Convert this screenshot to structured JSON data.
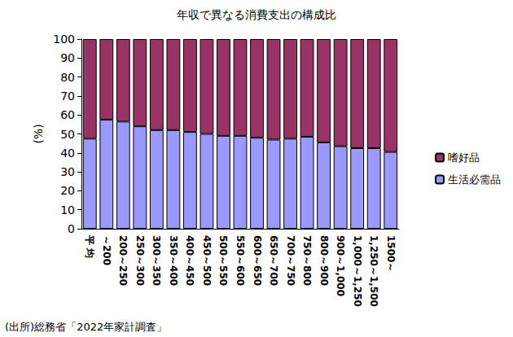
{
  "chart_data": {
    "type": "bar",
    "title": "年収で異なる消費支出の構成比",
    "y_label": "(%)",
    "annotations": [
      "(出所)総務省「2022年家計調査」"
    ],
    "categories": [
      "平 均",
      "～200",
      "200～250",
      "250～300",
      "300～350",
      "350～400",
      "400～450",
      "450～500",
      "500～550",
      "550～600",
      "600～650",
      "650～700",
      "700～750",
      "750～800",
      "800～900",
      "900～1,000",
      "1,000～1,250",
      "1,250～1,500",
      "1500～"
    ],
    "series": [
      {
        "name": "生活必需品",
        "color": "#9999ff",
        "values": [
          47.5,
          57.5,
          56.5,
          54,
          52,
          52,
          51,
          50,
          49,
          49,
          48,
          47,
          47.5,
          48.5,
          45.5,
          43.5,
          42.5,
          42.5,
          40.5
        ]
      },
      {
        "name": "嗜好品",
        "color": "#993366",
        "values": [
          52.5,
          42.5,
          43.5,
          46,
          48,
          48,
          49,
          50,
          51,
          51,
          52,
          53,
          52.5,
          51.5,
          54.5,
          56.5,
          57.5,
          57.5,
          59.5
        ]
      }
    ],
    "stacked": true,
    "ylim": [
      0,
      100
    ],
    "yticks": [
      0,
      10,
      20,
      30,
      40,
      50,
      60,
      70,
      80,
      90,
      100
    ],
    "grid": false,
    "legend": "right"
  }
}
